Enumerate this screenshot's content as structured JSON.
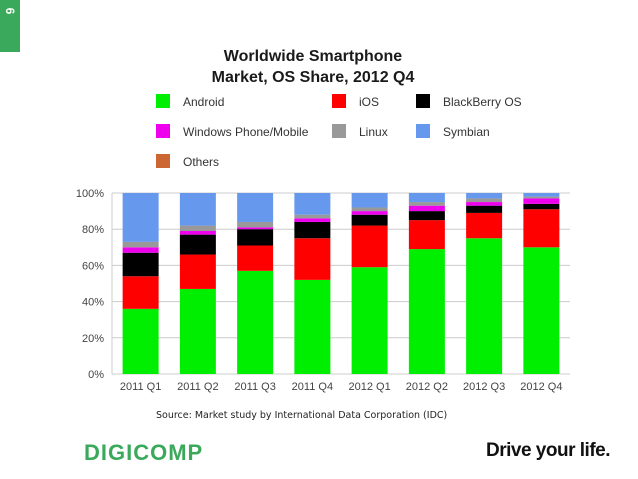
{
  "slide": {
    "number": "6"
  },
  "chart_data": {
    "type": "bar",
    "stacked": true,
    "title_lines": [
      "Worldwide Smartphone",
      "Market, OS Share, 2012 Q4"
    ],
    "categories": [
      "2011 Q1",
      "2011 Q2",
      "2011 Q3",
      "2011 Q4",
      "2012 Q1",
      "2012 Q2",
      "2012 Q3",
      "2012 Q4"
    ],
    "ylim": [
      0,
      100
    ],
    "yticks": [
      "0%",
      "20%",
      "40%",
      "60%",
      "80%",
      "100%"
    ],
    "grid": true,
    "series": [
      {
        "name": "Android",
        "color": "#00ee00",
        "values": [
          36,
          47,
          57,
          52,
          59,
          69,
          75,
          70
        ]
      },
      {
        "name": "iOS",
        "color": "#ff0000",
        "values": [
          18,
          19,
          14,
          23,
          23,
          16,
          14,
          21
        ]
      },
      {
        "name": "BlackBerry OS",
        "color": "#000000",
        "values": [
          13,
          11,
          9,
          9,
          6,
          5,
          4,
          3
        ]
      },
      {
        "name": "Windows Phone/Mobile",
        "color": "#ee00ee",
        "values": [
          3,
          2,
          1,
          2,
          2,
          3,
          2,
          3
        ]
      },
      {
        "name": "Linux",
        "color": "#999999",
        "values": [
          3,
          3,
          3,
          2,
          2,
          2,
          2,
          1
        ]
      },
      {
        "name": "Symbian",
        "color": "#6699ee",
        "values": [
          27,
          18,
          16,
          12,
          8,
          5,
          3,
          2
        ]
      },
      {
        "name": "Others",
        "color": "#cc6633",
        "values": [
          0,
          0,
          0,
          0,
          0,
          0,
          0,
          0
        ]
      }
    ]
  },
  "source": "Source: Market study by International Data Corporation (IDC)",
  "footer": {
    "logo": "DIGICOMP",
    "tagline": "Drive your life."
  }
}
